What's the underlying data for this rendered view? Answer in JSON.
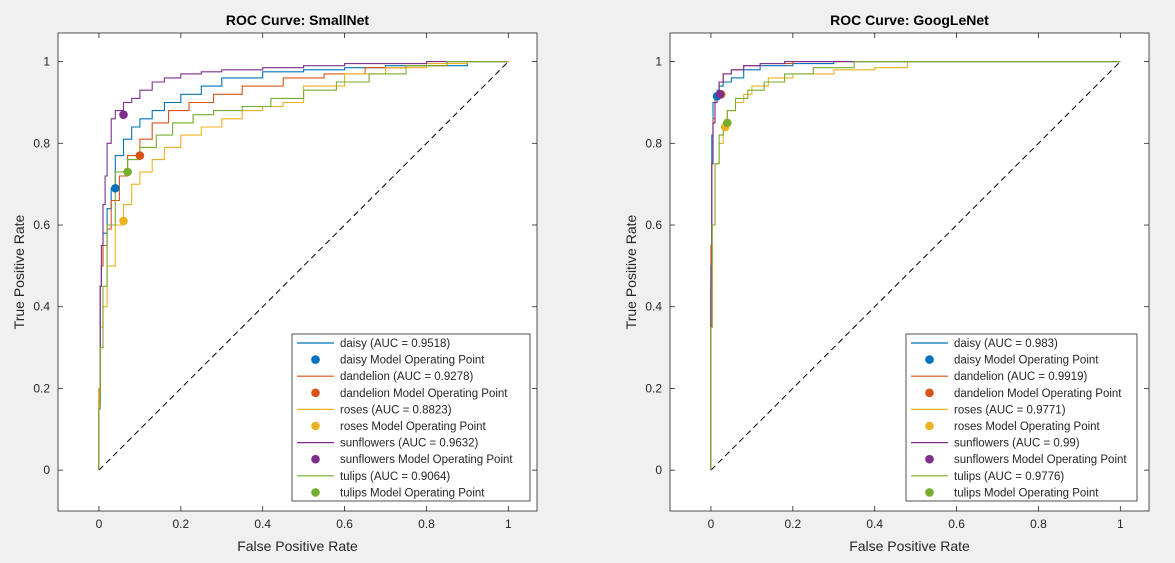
{
  "chart_data": [
    {
      "type": "line",
      "title": "ROC Curve: SmallNet",
      "xlabel": "False Positive Rate",
      "ylabel": "True Positive Rate",
      "xlim": [
        -0.1,
        1.07
      ],
      "ylim": [
        -0.1,
        1.07
      ],
      "xticks": [
        0,
        0.2,
        0.4,
        0.6,
        0.8,
        1
      ],
      "yticks": [
        0,
        0.2,
        0.4,
        0.6,
        0.8,
        1
      ],
      "xtick_labels": [
        "0",
        "0.2",
        "0.4",
        "0.6",
        "0.8",
        "1"
      ],
      "ytick_labels": [
        "0",
        "0.2",
        "0.4",
        "0.6",
        "0.8",
        "1"
      ],
      "grid": false,
      "legend_position": "bottom-right",
      "diagonal": true,
      "series": [
        {
          "name": "daisy (AUC = 0.9518)",
          "point_name": "daisy Model Operating Point",
          "color": "#0072BD",
          "x": [
            0,
            0.003,
            0.006,
            0.01,
            0.02,
            0.03,
            0.04,
            0.06,
            0.08,
            0.1,
            0.13,
            0.16,
            0.2,
            0.25,
            0.3,
            0.4,
            0.5,
            0.6,
            0.7,
            0.8,
            0.9,
            0.91,
            1
          ],
          "y": [
            0,
            0.17,
            0.45,
            0.5,
            0.58,
            0.64,
            0.69,
            0.77,
            0.81,
            0.84,
            0.86,
            0.88,
            0.9,
            0.92,
            0.94,
            0.96,
            0.975,
            0.98,
            0.985,
            0.99,
            0.99,
            1,
            1
          ],
          "op": [
            0.04,
            0.69
          ]
        },
        {
          "name": "dandelion (AUC = 0.9278)",
          "point_name": "dandelion Model Operating Point",
          "color": "#D95319",
          "x": [
            0,
            0.003,
            0.006,
            0.01,
            0.02,
            0.03,
            0.05,
            0.07,
            0.1,
            0.13,
            0.17,
            0.22,
            0.28,
            0.35,
            0.45,
            0.55,
            0.65,
            0.75,
            0.85,
            1
          ],
          "y": [
            0,
            0.2,
            0.45,
            0.5,
            0.55,
            0.59,
            0.66,
            0.72,
            0.77,
            0.81,
            0.85,
            0.88,
            0.9,
            0.92,
            0.94,
            0.96,
            0.97,
            0.985,
            0.99,
            1
          ],
          "op": [
            0.1,
            0.77
          ]
        },
        {
          "name": "roses (AUC = 0.8823)",
          "point_name": "roses Model Operating Point",
          "color": "#EDB120",
          "x": [
            0,
            0.003,
            0.01,
            0.02,
            0.04,
            0.06,
            0.08,
            0.1,
            0.13,
            0.16,
            0.2,
            0.25,
            0.3,
            0.35,
            0.4,
            0.45,
            0.5,
            0.6,
            0.7,
            0.8,
            0.9,
            1
          ],
          "y": [
            0,
            0.2,
            0.35,
            0.4,
            0.5,
            0.6,
            0.65,
            0.7,
            0.73,
            0.76,
            0.79,
            0.82,
            0.84,
            0.86,
            0.88,
            0.89,
            0.9,
            0.94,
            0.97,
            0.985,
            0.995,
            1
          ],
          "op": [
            0.06,
            0.61
          ]
        },
        {
          "name": "sunflowers (AUC = 0.9632)",
          "point_name": "sunflowers Model Operating Point",
          "color": "#7E2F8E",
          "x": [
            0,
            0.003,
            0.006,
            0.01,
            0.015,
            0.02,
            0.03,
            0.04,
            0.06,
            0.08,
            0.1,
            0.13,
            0.16,
            0.2,
            0.25,
            0.3,
            0.4,
            0.5,
            0.6,
            0.7,
            0.8,
            0.85,
            1
          ],
          "y": [
            0,
            0.15,
            0.45,
            0.55,
            0.65,
            0.72,
            0.8,
            0.86,
            0.88,
            0.9,
            0.91,
            0.93,
            0.95,
            0.96,
            0.97,
            0.975,
            0.98,
            0.985,
            0.99,
            0.995,
            0.995,
            1,
            1
          ],
          "op": [
            0.06,
            0.87
          ]
        },
        {
          "name": "tulips (AUC = 0.9064)",
          "point_name": "tulips Model Operating Point",
          "color": "#77AC30",
          "x": [
            0,
            0.003,
            0.01,
            0.02,
            0.04,
            0.07,
            0.1,
            0.14,
            0.18,
            0.23,
            0.28,
            0.35,
            0.42,
            0.5,
            0.58,
            0.66,
            0.75,
            0.85,
            1
          ],
          "y": [
            0,
            0.15,
            0.3,
            0.45,
            0.6,
            0.73,
            0.76,
            0.79,
            0.82,
            0.85,
            0.87,
            0.88,
            0.89,
            0.91,
            0.93,
            0.95,
            0.97,
            0.99,
            1
          ],
          "op": [
            0.07,
            0.73
          ]
        }
      ]
    },
    {
      "type": "line",
      "title": "ROC Curve: GoogLeNet",
      "xlabel": "False Positive Rate",
      "ylabel": "True Positive Rate",
      "xlim": [
        -0.1,
        1.07
      ],
      "ylim": [
        -0.1,
        1.07
      ],
      "xticks": [
        0,
        0.2,
        0.4,
        0.6,
        0.8,
        1
      ],
      "yticks": [
        0,
        0.2,
        0.4,
        0.6,
        0.8,
        1
      ],
      "xtick_labels": [
        "0",
        "0.2",
        "0.4",
        "0.6",
        "0.8",
        "1"
      ],
      "ytick_labels": [
        "0",
        "0.2",
        "0.4",
        "0.6",
        "0.8",
        "1"
      ],
      "grid": false,
      "legend_position": "bottom-right",
      "diagonal": true,
      "series": [
        {
          "name": "daisy (AUC = 0.983)",
          "point_name": "daisy Model Operating Point",
          "color": "#0072BD",
          "x": [
            0,
            0.002,
            0.005,
            0.01,
            0.015,
            0.02,
            0.03,
            0.05,
            0.08,
            0.12,
            0.2,
            0.3,
            0.4,
            1
          ],
          "y": [
            0,
            0.45,
            0.82,
            0.9,
            0.92,
            0.93,
            0.94,
            0.95,
            0.96,
            0.98,
            0.99,
            0.995,
            1,
            1
          ],
          "op": [
            0.015,
            0.915
          ]
        },
        {
          "name": "dandelion (AUC = 0.9919)",
          "point_name": "dandelion Model Operating Point",
          "color": "#D95319",
          "x": [
            0,
            0.002,
            0.005,
            0.01,
            0.02,
            0.03,
            0.05,
            0.08,
            0.12,
            0.2,
            0.3,
            1
          ],
          "y": [
            0,
            0.55,
            0.75,
            0.86,
            0.92,
            0.95,
            0.97,
            0.98,
            0.99,
            0.995,
            1,
            1
          ],
          "op": [
            0.025,
            0.92
          ]
        },
        {
          "name": "roses (AUC = 0.9771)",
          "point_name": "roses Model Operating Point",
          "color": "#EDB120",
          "x": [
            0,
            0.003,
            0.01,
            0.02,
            0.03,
            0.04,
            0.06,
            0.08,
            0.1,
            0.14,
            0.2,
            0.3,
            0.4,
            0.48,
            0.5,
            1
          ],
          "y": [
            0,
            0.35,
            0.6,
            0.75,
            0.8,
            0.84,
            0.88,
            0.9,
            0.92,
            0.94,
            0.96,
            0.97,
            0.98,
            0.985,
            1,
            1
          ],
          "op": [
            0.035,
            0.84
          ]
        },
        {
          "name": "sunflowers (AUC = 0.99)",
          "point_name": "sunflowers Model Operating Point",
          "color": "#7E2F8E",
          "x": [
            0,
            0.002,
            0.005,
            0.01,
            0.015,
            0.02,
            0.03,
            0.05,
            0.08,
            0.12,
            0.18,
            0.25,
            1
          ],
          "y": [
            0,
            0.5,
            0.75,
            0.85,
            0.9,
            0.92,
            0.95,
            0.97,
            0.98,
            0.99,
            0.995,
            1,
            1
          ],
          "op": [
            0.022,
            0.92
          ]
        },
        {
          "name": "tulips (AUC = 0.9776)",
          "point_name": "tulips Model Operating Point",
          "color": "#77AC30",
          "x": [
            0,
            0.003,
            0.01,
            0.02,
            0.03,
            0.04,
            0.06,
            0.09,
            0.13,
            0.18,
            0.25,
            0.35,
            0.45,
            1
          ],
          "y": [
            0,
            0.35,
            0.6,
            0.75,
            0.82,
            0.85,
            0.88,
            0.91,
            0.93,
            0.95,
            0.97,
            0.985,
            1,
            1
          ],
          "op": [
            0.04,
            0.85
          ]
        }
      ]
    }
  ]
}
